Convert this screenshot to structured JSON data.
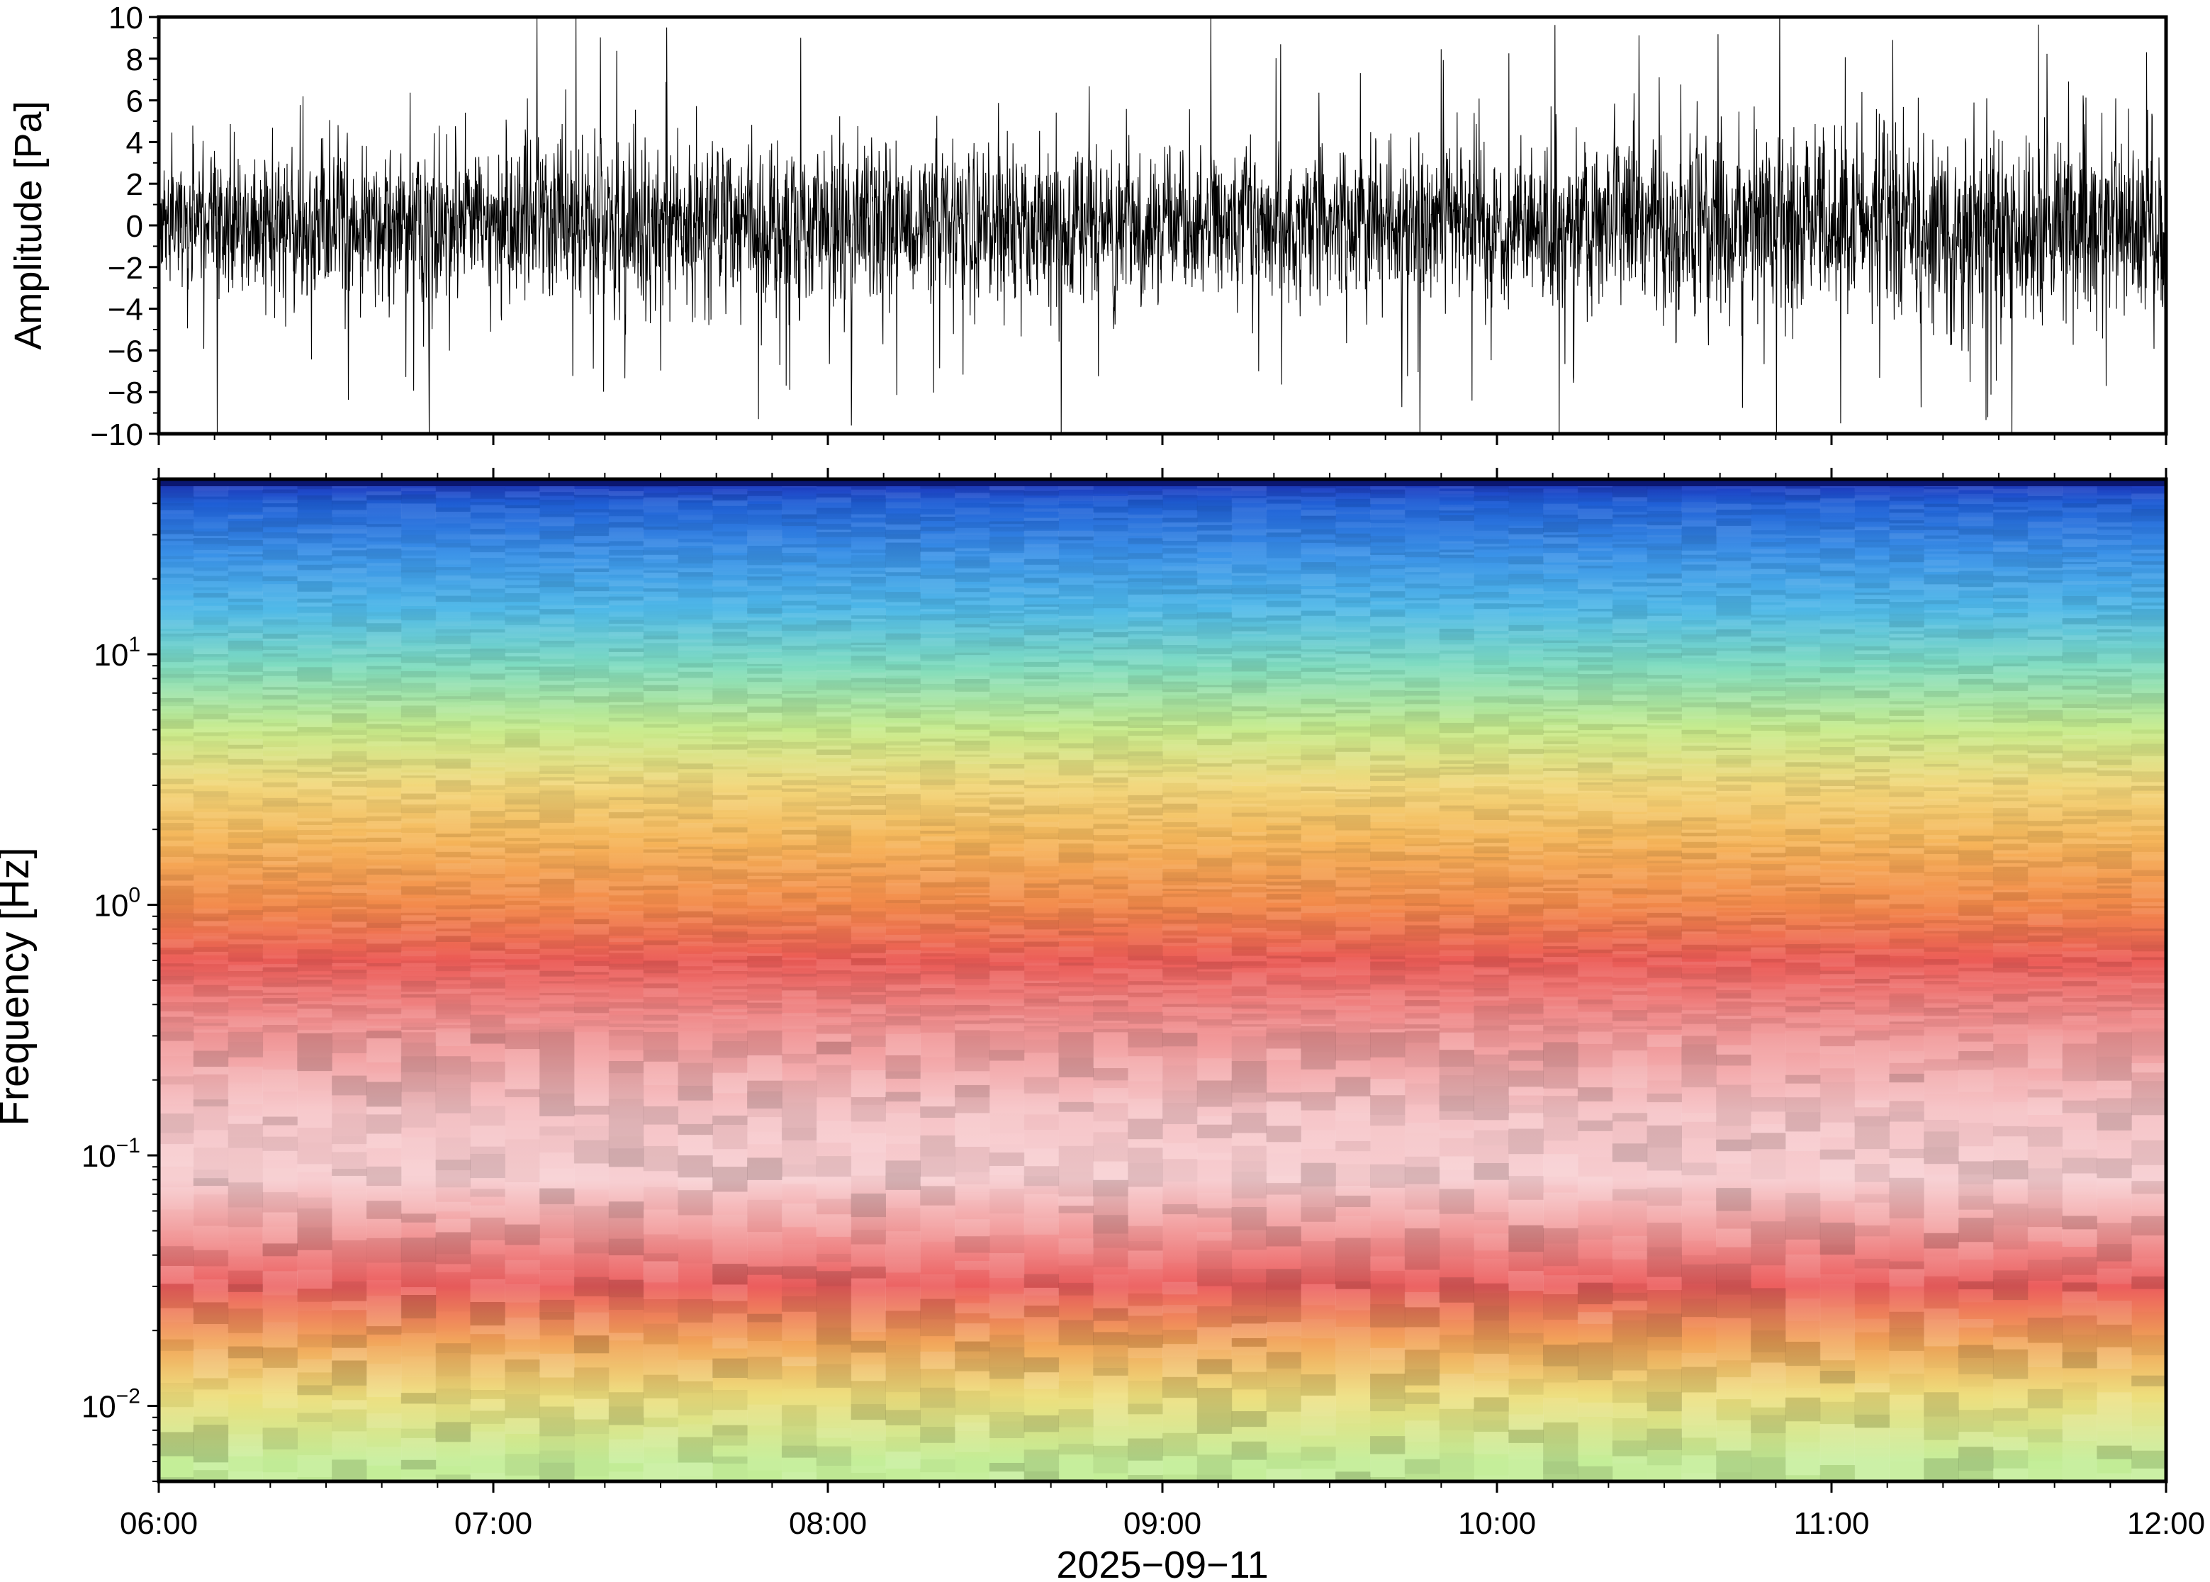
{
  "chart_data": [
    {
      "type": "line",
      "panel": "waveform",
      "xlabel": "",
      "ylabel": "Amplitude [Pa]",
      "ylim": [
        -10,
        10
      ],
      "x_range": [
        "06:00",
        "12:00"
      ],
      "y_ticks": [
        "10",
        "8",
        "6",
        "4",
        "2",
        "0",
        "−2",
        "−4",
        "−6",
        "−8",
        "−10"
      ],
      "grid": false,
      "series": [
        {
          "x_hours": [
            6.0,
            6.5,
            7.0,
            7.5,
            8.0,
            8.5,
            9.0,
            9.5,
            10.0,
            10.5,
            11.0,
            11.5,
            12.0
          ],
          "typical_envelope_pa": [
            3.0,
            3.2,
            3.3,
            3.4,
            3.4,
            3.2,
            3.0,
            2.9,
            3.2,
            3.6,
            3.8,
            3.9,
            3.8
          ],
          "peak_envelope_pa": [
            9.0,
            9.5,
            10.0,
            10.0,
            10.0,
            9.5,
            9.0,
            9.0,
            10.0,
            10.0,
            10.0,
            10.0,
            10.0
          ],
          "color": "#000000"
        }
      ]
    },
    {
      "type": "heatmap",
      "panel": "spectrogram",
      "xlabel": "2025−09−11",
      "ylabel": "Frequency [Hz]",
      "y_scale": "log",
      "ylim": [
        0.005,
        50
      ],
      "x_ticks": [
        "06:00",
        "07:00",
        "08:00",
        "09:00",
        "10:00",
        "11:00",
        "12:00"
      ],
      "y_ticks": [
        {
          "base": "10",
          "exp": "−2",
          "value": 0.01
        },
        {
          "base": "10",
          "exp": "−1",
          "value": 0.1
        },
        {
          "base": "10",
          "exp": "0",
          "value": 1
        },
        {
          "base": "10",
          "exp": "1",
          "value": 10
        }
      ],
      "colormap_stops": [
        {
          "freq_hz": 50,
          "color": "#1e2fb8"
        },
        {
          "freq_hz": 40,
          "color": "#1f5fd6"
        },
        {
          "freq_hz": 25,
          "color": "#3a92e8"
        },
        {
          "freq_hz": 15,
          "color": "#4fb9e8"
        },
        {
          "freq_hz": 9,
          "color": "#7fdcc0"
        },
        {
          "freq_hz": 5,
          "color": "#c8ec8c"
        },
        {
          "freq_hz": 3,
          "color": "#f2d77a"
        },
        {
          "freq_hz": 1.8,
          "color": "#f6b65a"
        },
        {
          "freq_hz": 1.0,
          "color": "#f38a4a"
        },
        {
          "freq_hz": 0.6,
          "color": "#ec5b56"
        },
        {
          "freq_hz": 0.35,
          "color": "#f08c8c"
        },
        {
          "freq_hz": 0.15,
          "color": "#f6c3c6"
        },
        {
          "freq_hz": 0.08,
          "color": "#f7cdd0"
        },
        {
          "freq_hz": 0.05,
          "color": "#f29a9a"
        },
        {
          "freq_hz": 0.03,
          "color": "#ec5d5d"
        },
        {
          "freq_hz": 0.018,
          "color": "#f2a458"
        },
        {
          "freq_hz": 0.011,
          "color": "#eede7c"
        },
        {
          "freq_hz": 0.006,
          "color": "#c4ee98"
        }
      ],
      "grid": false
    }
  ]
}
